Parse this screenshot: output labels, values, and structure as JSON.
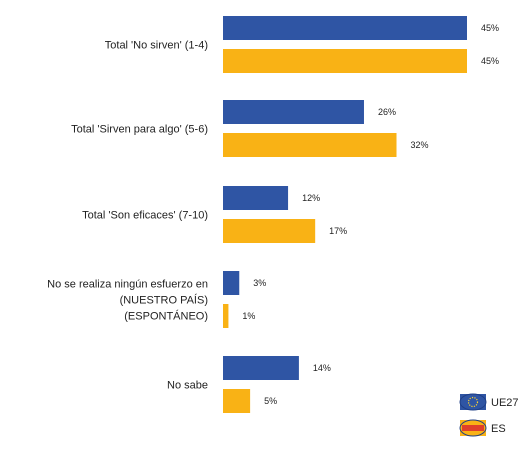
{
  "chart_data": {
    "type": "bar",
    "orientation": "horizontal",
    "categories": [
      [
        "Total 'No sirven' (1-4)"
      ],
      [
        "Total 'Sirven para algo' (5-6)"
      ],
      [
        "Total 'Son eficaces' (7-10)"
      ],
      [
        "No se realiza ningún esfuerzo en",
        "(NUESTRO PAÍS)",
        "(ESPONTÁNEO)"
      ],
      [
        "No sabe"
      ]
    ],
    "series": [
      {
        "name": "UE27",
        "color": "#2f55a4",
        "values": [
          45,
          26,
          12,
          3,
          14
        ],
        "value_labels": [
          "45%",
          "26%",
          "12%",
          "3%",
          "14%"
        ],
        "icon": "eu-flag-icon"
      },
      {
        "name": "ES",
        "color": "#f9b215",
        "values": [
          45,
          32,
          17,
          1,
          5
        ],
        "value_labels": [
          "45%",
          "32%",
          "17%",
          "1%",
          "5%"
        ],
        "icon": "spain-flag-icon"
      }
    ],
    "xlim": [
      0,
      45
    ],
    "grid": false,
    "legend_position": "bottom-right"
  }
}
